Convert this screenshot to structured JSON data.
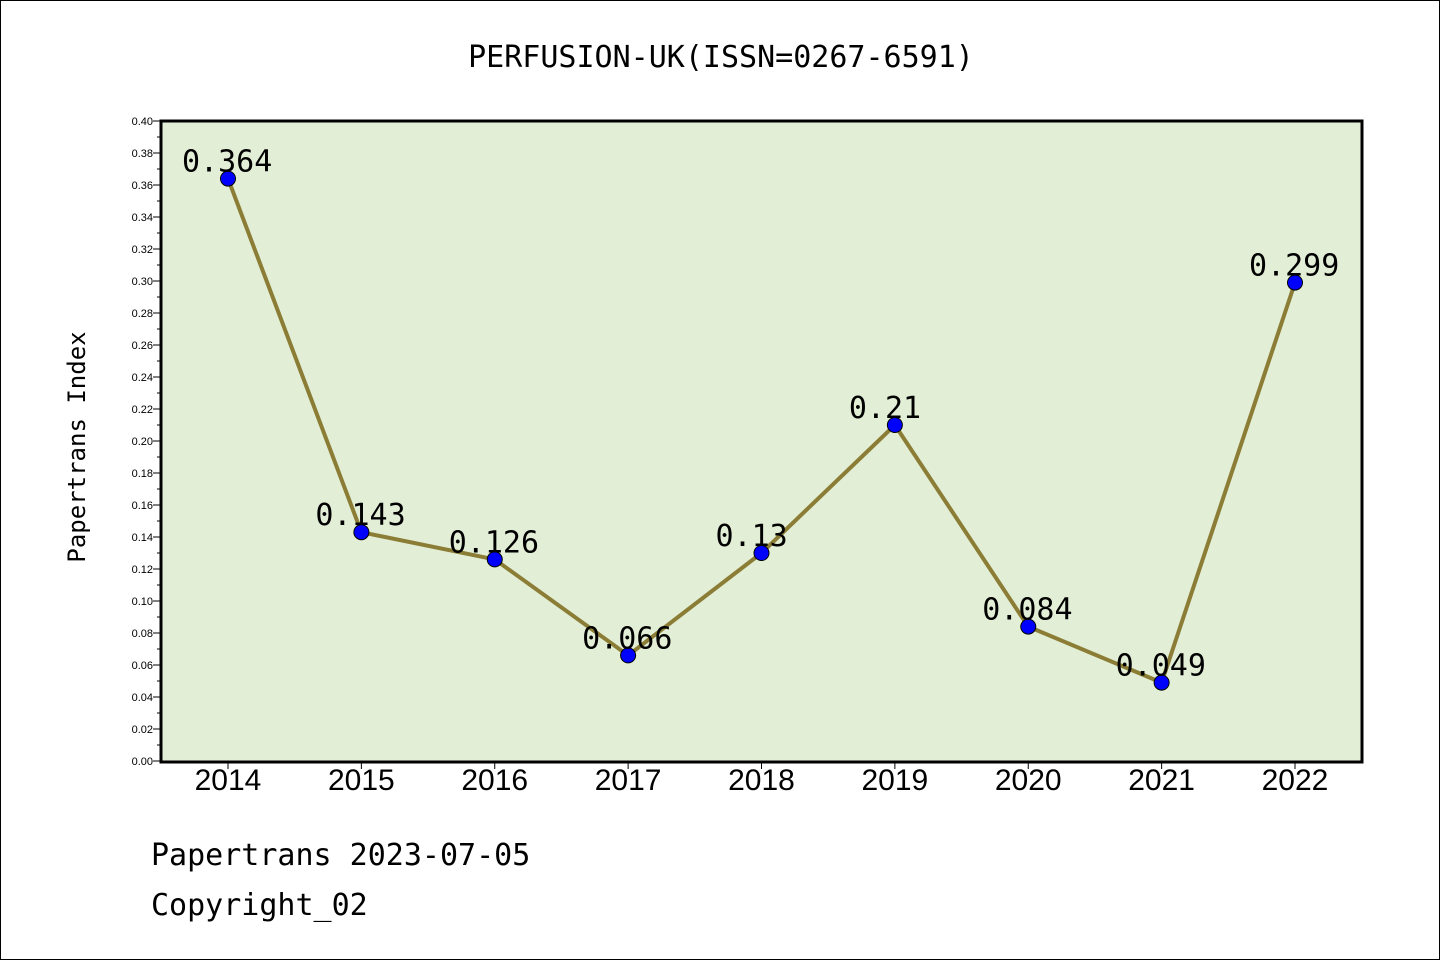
{
  "chart_data": {
    "type": "line",
    "title": "PERFUSION-UK(ISSN=0267-6591)",
    "xlabel": "",
    "ylabel": "Papertrans Index",
    "ylim": [
      0,
      0.4
    ],
    "yticks": [
      "0.00",
      "0.02",
      "0.04",
      "0.06",
      "0.08",
      "0.10",
      "0.12",
      "0.14",
      "0.16",
      "0.18",
      "0.20",
      "0.22",
      "0.24",
      "0.26",
      "0.28",
      "0.30",
      "0.32",
      "0.34",
      "0.36",
      "0.38",
      "0.40"
    ],
    "categories": [
      "2014",
      "2015",
      "2016",
      "2017",
      "2018",
      "2019",
      "2020",
      "2021",
      "2022"
    ],
    "values": [
      0.364,
      0.143,
      0.126,
      0.066,
      0.13,
      0.21,
      0.084,
      0.049,
      0.299
    ],
    "data_labels": [
      "0.364",
      "0.143",
      "0.126",
      "0.066",
      "0.13",
      "0.21",
      "0.084",
      "0.049",
      "0.299"
    ],
    "grid": false,
    "colors": {
      "plot_background": "#e2efd6",
      "line": "#8b7d35",
      "marker": "#0000ff"
    }
  },
  "footer": {
    "line1": "Papertrans 2023-07-05",
    "line2": "Copyright_02"
  }
}
